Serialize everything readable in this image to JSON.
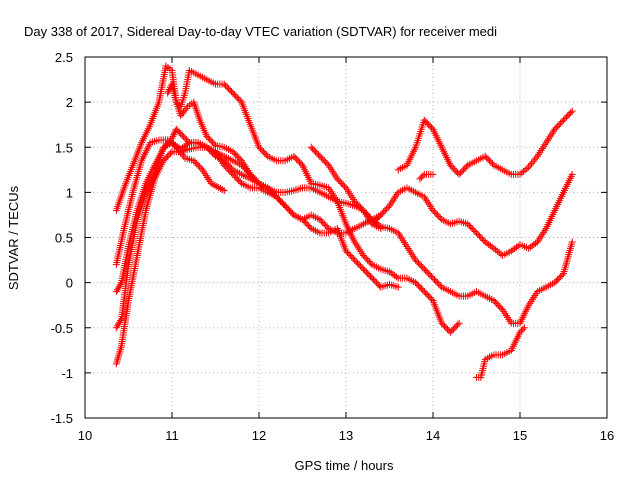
{
  "chart_data": {
    "type": "scatter",
    "title": "Day 338 of 2017, Sidereal Day-to-day VTEC variation (SDTVAR) for receiver medi",
    "xlabel": "GPS time / hours",
    "ylabel": "SDTVAR / TECUs",
    "xlim": [
      10,
      16
    ],
    "ylim": [
      -1.5,
      2.5
    ],
    "xticks": [
      "10",
      "11",
      "12",
      "13",
      "14",
      "15",
      "16"
    ],
    "yticks": [
      "2.5",
      "2",
      "1.5",
      "1",
      "0.5",
      "0",
      "-0.5",
      "-1",
      "-1.5"
    ],
    "grid": true,
    "marker": "+",
    "color": "#ff0000",
    "series": [
      {
        "name": "track-1",
        "x": [
          10.36,
          10.45,
          10.55,
          10.65,
          10.75,
          10.85,
          10.93,
          11.0,
          11.05,
          11.1,
          11.18,
          11.25,
          11.32,
          11.4,
          11.5,
          11.6,
          11.7,
          11.8,
          11.9,
          12.0,
          12.05
        ],
        "y": [
          0.8,
          1.05,
          1.3,
          1.55,
          1.75,
          2.0,
          2.4,
          2.35,
          2.0,
          1.85,
          1.95,
          2.0,
          1.8,
          1.62,
          1.52,
          1.5,
          1.45,
          1.35,
          1.2,
          1.1,
          1.05
        ]
      },
      {
        "name": "track-2",
        "x": [
          10.36,
          10.42,
          10.5,
          10.6,
          10.7,
          10.8,
          10.9,
          11.0,
          11.1,
          11.2,
          11.3,
          11.4,
          11.5,
          11.6,
          11.7,
          11.8,
          11.9,
          12.0,
          12.1,
          12.2,
          12.3,
          12.4,
          12.5,
          12.6,
          12.7,
          12.8,
          12.9,
          13.0,
          13.1,
          13.2,
          13.3,
          13.4
        ],
        "y": [
          -0.9,
          -0.7,
          -0.2,
          0.3,
          0.8,
          1.15,
          1.35,
          1.45,
          1.45,
          1.48,
          1.5,
          1.5,
          1.45,
          1.4,
          1.35,
          1.3,
          1.2,
          1.1,
          1.05,
          1.0,
          1.0,
          1.02,
          1.05,
          1.05,
          1.0,
          0.95,
          0.9,
          0.88,
          0.85,
          0.8,
          0.65,
          0.6
        ]
      },
      {
        "name": "track-3",
        "x": [
          10.36,
          10.42,
          10.5,
          10.6,
          10.7,
          10.8,
          10.9,
          11.0,
          11.1,
          11.2,
          11.3,
          11.4,
          11.5,
          11.6,
          11.7,
          11.8,
          11.9,
          12.0,
          12.1,
          12.2,
          12.3,
          12.4,
          12.5,
          12.6,
          12.7,
          12.8,
          12.9,
          13.0,
          13.1,
          13.2,
          13.3,
          13.4
        ],
        "y": [
          -0.5,
          -0.4,
          0.2,
          0.7,
          1.0,
          1.2,
          1.5,
          1.55,
          1.48,
          1.55,
          1.55,
          1.5,
          1.45,
          1.3,
          1.2,
          1.1,
          1.05,
          1.05,
          1.0,
          0.95,
          0.85,
          0.75,
          0.7,
          0.75,
          0.7,
          0.6,
          0.55,
          0.55,
          0.6,
          0.65,
          0.7,
          0.75
        ]
      },
      {
        "name": "track-4",
        "x": [
          10.36,
          10.45,
          10.55,
          10.65,
          10.75,
          10.85,
          10.95,
          11.05,
          11.15,
          11.25,
          11.35,
          11.45,
          11.6
        ],
        "y": [
          0.2,
          0.6,
          1.0,
          1.35,
          1.55,
          1.58,
          1.58,
          1.5,
          1.38,
          1.35,
          1.25,
          1.1,
          1.02
        ]
      },
      {
        "name": "track-5",
        "x": [
          10.36,
          10.42,
          10.5,
          10.6,
          10.7,
          10.8,
          10.9,
          11.0,
          11.05,
          11.1,
          11.15,
          11.2,
          11.3,
          11.4,
          11.5,
          11.6,
          11.7,
          11.8,
          11.9,
          12.0,
          12.1,
          12.2,
          12.3,
          12.35,
          12.4,
          12.5,
          12.6,
          12.7,
          12.8,
          12.9,
          13.0,
          13.1,
          13.2,
          13.3,
          13.35,
          13.4,
          13.5,
          13.6
        ],
        "y": [
          -0.1,
          0.0,
          0.4,
          0.8,
          1.1,
          1.3,
          1.48,
          1.6,
          1.7,
          1.65,
          1.6,
          1.55,
          1.55,
          1.5,
          1.4,
          1.35,
          1.25,
          1.2,
          1.15,
          1.1,
          1.05,
          0.95,
          0.85,
          0.8,
          0.75,
          0.7,
          0.6,
          0.55,
          0.55,
          0.6,
          0.35,
          0.25,
          0.15,
          0.05,
          0.0,
          -0.05,
          -0.02,
          -0.05
        ]
      },
      {
        "name": "track-6",
        "x": [
          10.95,
          11.0,
          11.05,
          11.1,
          11.15,
          11.2,
          11.3,
          11.4,
          11.5,
          11.6,
          11.7,
          11.8,
          11.9,
          12.0,
          12.1,
          12.2,
          12.3,
          12.4,
          12.5,
          12.6,
          12.7,
          12.8,
          12.9,
          13.0,
          13.1,
          13.2,
          13.3,
          13.4,
          13.5,
          13.6,
          13.7,
          13.8,
          13.9,
          14.0,
          14.1,
          14.2,
          14.3
        ],
        "y": [
          2.1,
          2.2,
          2.0,
          1.95,
          2.1,
          2.35,
          2.3,
          2.25,
          2.2,
          2.2,
          2.1,
          2.0,
          1.75,
          1.5,
          1.4,
          1.35,
          1.35,
          1.4,
          1.3,
          1.1,
          1.08,
          1.05,
          0.9,
          0.65,
          0.45,
          0.3,
          0.2,
          0.15,
          0.12,
          0.05,
          0.05,
          0.0,
          -0.1,
          -0.2,
          -0.45,
          -0.55,
          -0.45
        ]
      },
      {
        "name": "track-7",
        "x": [
          12.6,
          12.7,
          12.8,
          12.9,
          13.0,
          13.1,
          13.2,
          13.3,
          13.4,
          13.5,
          13.6,
          13.7,
          13.8,
          13.9,
          14.0,
          14.1,
          14.2,
          14.3,
          14.4,
          14.5,
          14.6,
          14.7,
          14.8,
          14.9,
          15.0,
          15.1,
          15.2,
          15.3,
          15.4,
          15.5,
          15.6
        ],
        "y": [
          1.5,
          1.4,
          1.3,
          1.15,
          1.05,
          0.9,
          0.8,
          0.7,
          0.62,
          0.6,
          0.55,
          0.4,
          0.25,
          0.15,
          0.05,
          -0.05,
          -0.1,
          -0.15,
          -0.15,
          -0.1,
          -0.15,
          -0.2,
          -0.3,
          -0.45,
          -0.45,
          -0.25,
          -0.1,
          -0.05,
          0.0,
          0.1,
          0.45
        ]
      },
      {
        "name": "track-8",
        "x": [
          13.3,
          13.4,
          13.5,
          13.6,
          13.7,
          13.8,
          13.9,
          14.0,
          14.1,
          14.2,
          14.3,
          14.4,
          14.5,
          14.6,
          14.7,
          14.8,
          14.9,
          15.0,
          15.1,
          15.2,
          15.3,
          15.4,
          15.5,
          15.6
        ],
        "y": [
          0.65,
          0.75,
          0.85,
          1.0,
          1.05,
          1.0,
          0.95,
          0.8,
          0.7,
          0.65,
          0.68,
          0.65,
          0.55,
          0.45,
          0.38,
          0.3,
          0.35,
          0.42,
          0.38,
          0.45,
          0.6,
          0.8,
          1.0,
          1.2
        ]
      },
      {
        "name": "track-9",
        "x": [
          13.6,
          13.7,
          13.8,
          13.85,
          13.9,
          14.0,
          14.1,
          14.2,
          14.3,
          14.4,
          14.5,
          14.6,
          14.7,
          14.8,
          14.9,
          15.0,
          15.1,
          15.2,
          15.3,
          15.4,
          15.5,
          15.6
        ],
        "y": [
          1.25,
          1.3,
          1.5,
          1.65,
          1.8,
          1.7,
          1.5,
          1.3,
          1.2,
          1.3,
          1.35,
          1.4,
          1.3,
          1.25,
          1.2,
          1.2,
          1.28,
          1.4,
          1.55,
          1.7,
          1.8,
          1.9
        ]
      },
      {
        "name": "track-10",
        "x": [
          13.85,
          13.9,
          13.95,
          14.0
        ],
        "y": [
          1.15,
          1.2,
          1.2,
          1.2
        ]
      },
      {
        "name": "track-11",
        "x": [
          14.5,
          14.55,
          14.6,
          14.7,
          14.8,
          14.9,
          15.0,
          15.05
        ],
        "y": [
          -1.05,
          -1.05,
          -0.85,
          -0.8,
          -0.8,
          -0.75,
          -0.55,
          -0.5
        ]
      }
    ]
  }
}
